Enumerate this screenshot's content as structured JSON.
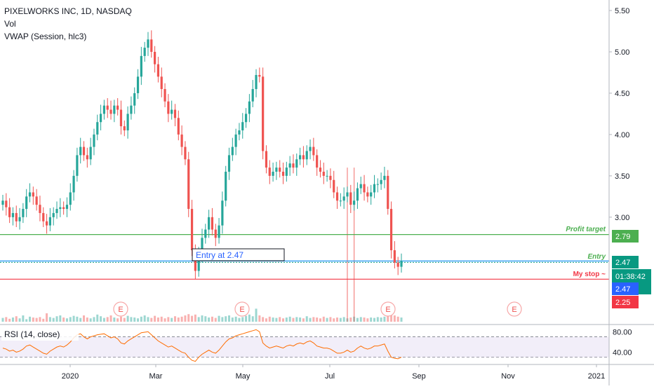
{
  "header": {
    "symbol_title": "PIXELWORKS INC, 1D, NASDAQ",
    "indicator_vol": "Vol",
    "indicator_vwap": "VWAP (Session, hlc3)"
  },
  "price_axis": {
    "ticks": [
      "5.50",
      "5.00",
      "4.50",
      "4.00",
      "3.50",
      "3.00"
    ]
  },
  "rsi_axis": {
    "ticks": [
      "80.00",
      "40.00"
    ]
  },
  "time_axis": {
    "ticks": [
      "2020",
      "Mar",
      "May",
      "Jul",
      "Sep",
      "Nov",
      "2021"
    ]
  },
  "levels": {
    "profit_target": {
      "label": "Profit target",
      "value": "2.79",
      "color": "#4caf50"
    },
    "entry": {
      "label": "Entry",
      "value": "2.47",
      "color": "#089981"
    },
    "stop": {
      "label": "My stop ~",
      "value": "2.25",
      "color": "#f23645"
    }
  },
  "entry_note": "Entry at 2.47",
  "last_price": {
    "value": "2.47",
    "countdown": "01:38:42",
    "color": "#2962ff"
  },
  "earnings_markers": [
    "E",
    "E",
    "E",
    "E"
  ],
  "rsi_label": "RSI (14, close)",
  "colors": {
    "up": "#26a69a",
    "down": "#ef5350",
    "rsi_line": "#ff6d00",
    "rsi_band": "#7e57c2",
    "axis_text": "#131722"
  },
  "chart_data": {
    "type": "candlestick",
    "title": "PIXELWORKS INC, 1D, NASDAQ",
    "price_ylim": [
      2.0,
      5.6
    ],
    "rsi_ylim": [
      20,
      90
    ],
    "rsi_bands": [
      30,
      70
    ],
    "closes": [
      3.2,
      3.12,
      3.0,
      3.05,
      2.95,
      3.0,
      3.1,
      3.25,
      3.3,
      3.25,
      3.15,
      3.05,
      2.95,
      2.9,
      3.0,
      3.05,
      3.1,
      3.12,
      3.1,
      3.15,
      3.3,
      3.5,
      3.75,
      3.85,
      3.75,
      3.7,
      3.85,
      4.0,
      4.15,
      4.25,
      4.35,
      4.3,
      4.25,
      4.35,
      4.3,
      4.1,
      4.05,
      4.25,
      4.35,
      4.5,
      4.7,
      4.95,
      5.05,
      5.15,
      5.0,
      4.85,
      4.7,
      4.55,
      4.4,
      4.25,
      4.3,
      4.2,
      4.0,
      3.85,
      3.7,
      3.1,
      2.6,
      2.35,
      2.55,
      2.75,
      2.85,
      3.0,
      2.85,
      2.75,
      2.9,
      3.2,
      3.55,
      3.75,
      3.85,
      4.0,
      4.05,
      4.15,
      4.25,
      4.4,
      4.55,
      4.72,
      4.7,
      3.8,
      3.6,
      3.5,
      3.55,
      3.6,
      3.55,
      3.5,
      3.6,
      3.65,
      3.6,
      3.7,
      3.75,
      3.7,
      3.8,
      3.85,
      3.75,
      3.6,
      3.55,
      3.5,
      3.5,
      3.45,
      3.3,
      3.2,
      3.2,
      3.25,
      3.3,
      3.15,
      3.2,
      3.35,
      3.4,
      3.3,
      3.25,
      3.3,
      3.4,
      3.4,
      3.45,
      3.5,
      3.1,
      2.6,
      2.45,
      2.4,
      2.47
    ],
    "volume": [
      0.18,
      0.22,
      0.14,
      0.2,
      0.26,
      0.16,
      0.3,
      0.12,
      0.24,
      0.2,
      0.18,
      0.22,
      0.14,
      0.4,
      0.22,
      0.18,
      0.26,
      0.3,
      0.2,
      0.16,
      0.22,
      0.28,
      0.24,
      0.18,
      0.3,
      0.2,
      0.16,
      0.22,
      0.34,
      0.26,
      0.18,
      0.22,
      0.3,
      0.2,
      0.16,
      0.24,
      0.18,
      0.28,
      0.22,
      0.2,
      0.16,
      0.24,
      0.3,
      0.22,
      0.18,
      0.28,
      0.2,
      0.24,
      0.16,
      0.22,
      0.18,
      0.26,
      0.2,
      0.24,
      0.3,
      0.36,
      0.28,
      0.34,
      0.22,
      0.3,
      0.26,
      0.2,
      0.24,
      0.18,
      0.28,
      0.22,
      0.26,
      0.3,
      0.2,
      0.24,
      0.18,
      0.22,
      0.28,
      0.34,
      0.26,
      0.62,
      0.3,
      0.22,
      0.16,
      0.24,
      0.2,
      0.18,
      0.22,
      0.16,
      0.2,
      0.24,
      0.18,
      0.22,
      0.2,
      0.16,
      0.26,
      0.18,
      0.22,
      0.2,
      0.16,
      0.24,
      0.18,
      0.22,
      0.16,
      0.2,
      0.18,
      0.22,
      0.16,
      0.2,
      0.24,
      0.18,
      0.22,
      0.2,
      0.16,
      0.2,
      0.18,
      0.22,
      0.2,
      0.24,
      0.4,
      0.7,
      0.3,
      0.24,
      0.2
    ],
    "volume_spikes": [
      {
        "index": 102,
        "value": 3.6
      },
      {
        "index": 104,
        "value": 3.6
      }
    ],
    "rsi": [
      48,
      46,
      42,
      44,
      40,
      42,
      46,
      52,
      54,
      50,
      46,
      42,
      38,
      36,
      42,
      46,
      50,
      52,
      50,
      54,
      60,
      68,
      74,
      76,
      70,
      66,
      70,
      72,
      74,
      75,
      76,
      72,
      68,
      70,
      66,
      58,
      56,
      62,
      66,
      70,
      74,
      78,
      79,
      80,
      74,
      68,
      62,
      58,
      54,
      50,
      52,
      48,
      44,
      40,
      38,
      30,
      24,
      22,
      30,
      36,
      40,
      44,
      40,
      38,
      44,
      52,
      60,
      66,
      68,
      72,
      74,
      76,
      78,
      80,
      82,
      84,
      80,
      58,
      52,
      48,
      50,
      52,
      50,
      48,
      52,
      54,
      52,
      56,
      58,
      56,
      60,
      62,
      58,
      52,
      50,
      48,
      48,
      46,
      42,
      38,
      38,
      40,
      44,
      40,
      42,
      48,
      52,
      48,
      46,
      48,
      52,
      52,
      54,
      56,
      42,
      30,
      28,
      27,
      30
    ]
  }
}
